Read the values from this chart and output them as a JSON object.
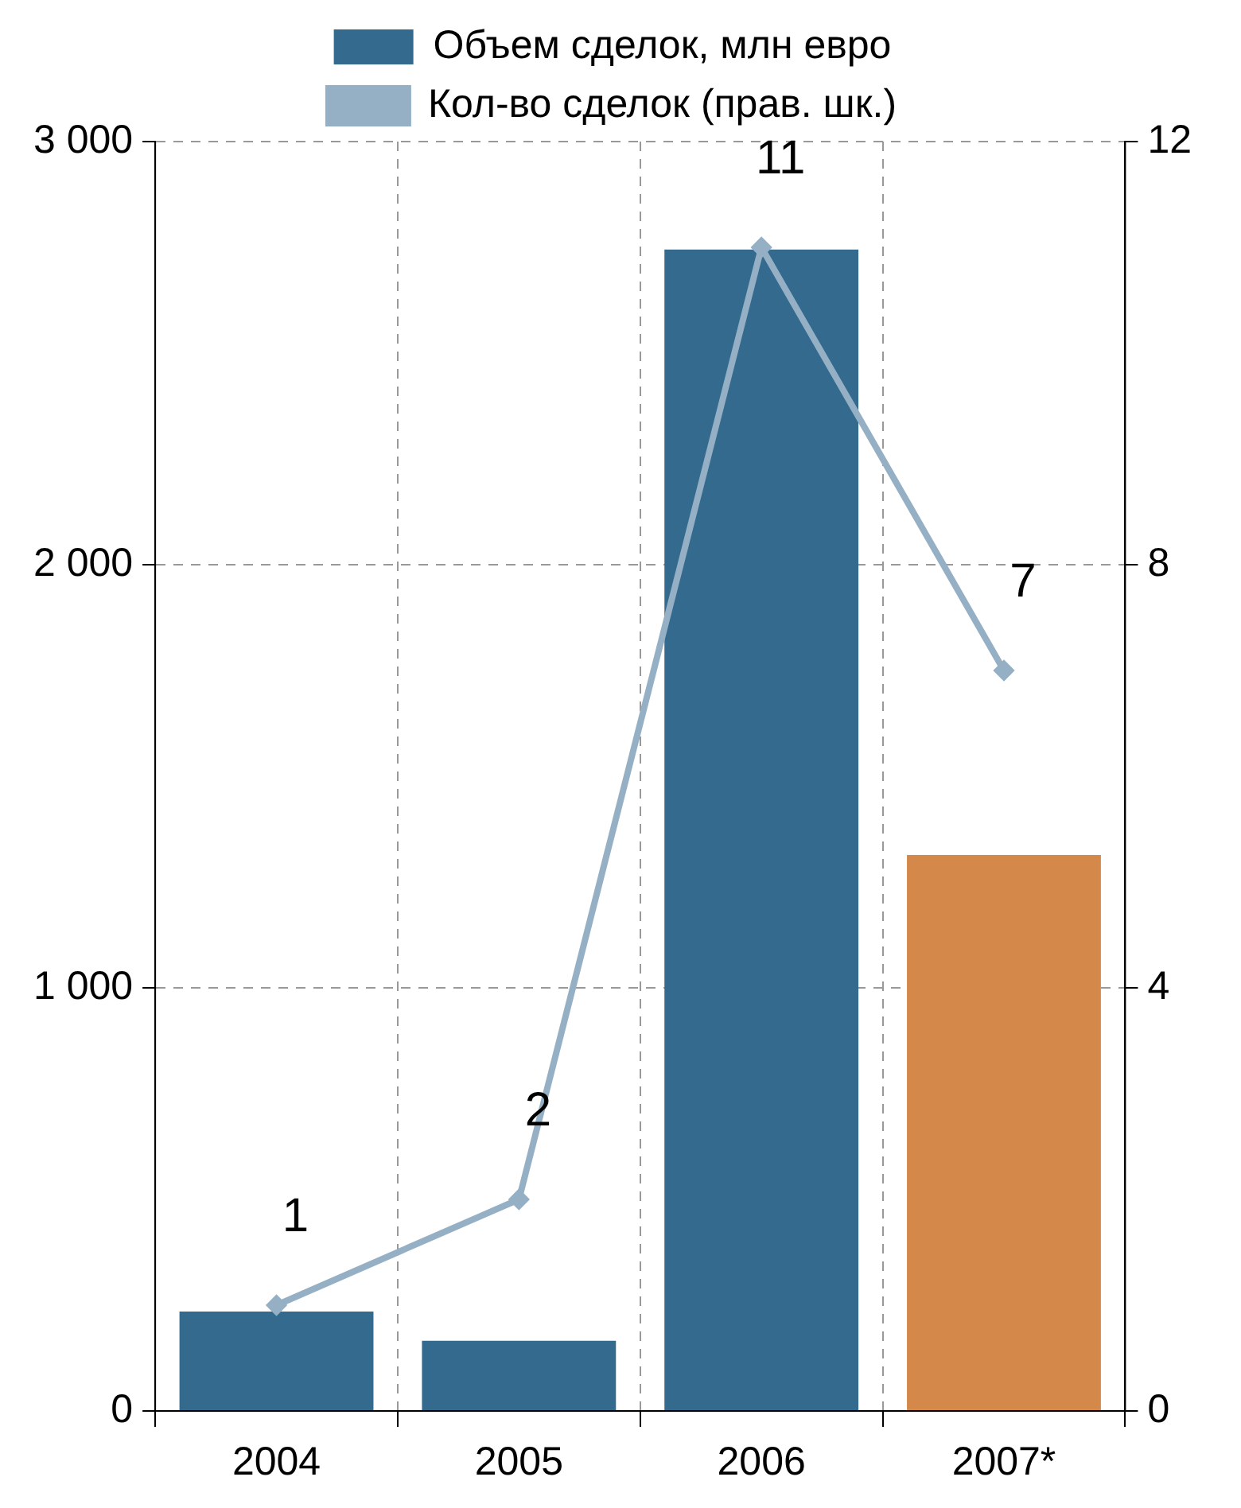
{
  "chart_data": {
    "type": "bar",
    "categories": [
      "2004",
      "2005",
      "2006",
      "2007*"
    ],
    "series": [
      {
        "name": "Объем сделок, млн евро",
        "color": "#336a8e",
        "colors": [
          "#336a8e",
          "#336a8e",
          "#336a8e",
          "#d4894a"
        ],
        "values": [
          235,
          166,
          2745,
          1314
        ]
      },
      {
        "name": "Кол-во сделок (прав. шк.)",
        "type": "line",
        "axis": "y2",
        "color": "#95b0c4",
        "values": [
          1,
          2,
          11,
          7
        ],
        "value_labels": [
          "1",
          "2",
          "11",
          "7"
        ]
      }
    ],
    "ylim": [
      0,
      3000
    ],
    "yticks": [
      {
        "value": 0,
        "label": "0"
      },
      {
        "value": 1000,
        "label": "1 000"
      },
      {
        "value": 2000,
        "label": "2 000"
      },
      {
        "value": 3000,
        "label": "3 000"
      }
    ],
    "y2lim": [
      0,
      12
    ],
    "y2ticks": [
      0,
      4,
      8,
      12
    ],
    "grid": true,
    "legend": "top",
    "marker": "diamond",
    "line_style": "solid"
  }
}
